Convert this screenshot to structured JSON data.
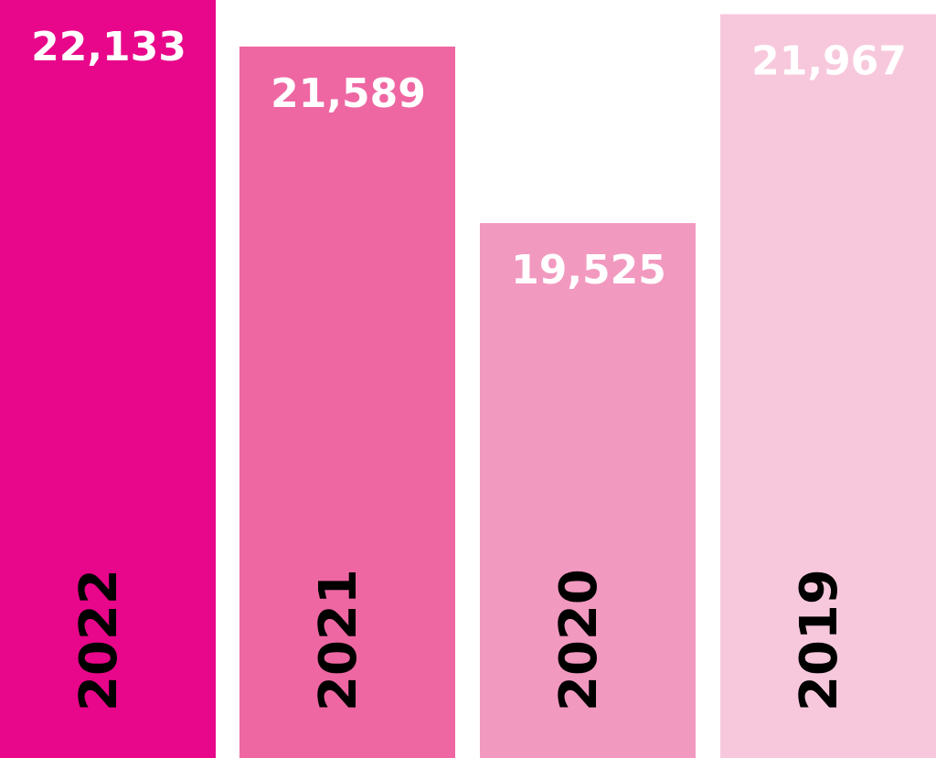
{
  "chart_data": {
    "type": "bar",
    "title": "",
    "xlabel": "",
    "ylabel": "",
    "categories": [
      "2022",
      "2021",
      "2020",
      "2019"
    ],
    "values": [
      22133,
      21589,
      19525,
      21967
    ],
    "value_labels": [
      "22,133",
      "21,589",
      "19,525",
      "21,967"
    ],
    "colors": [
      "#e8068a",
      "#ee67a2",
      "#f299c0",
      "#f7c8dc"
    ],
    "grid": false,
    "legend": "none"
  }
}
